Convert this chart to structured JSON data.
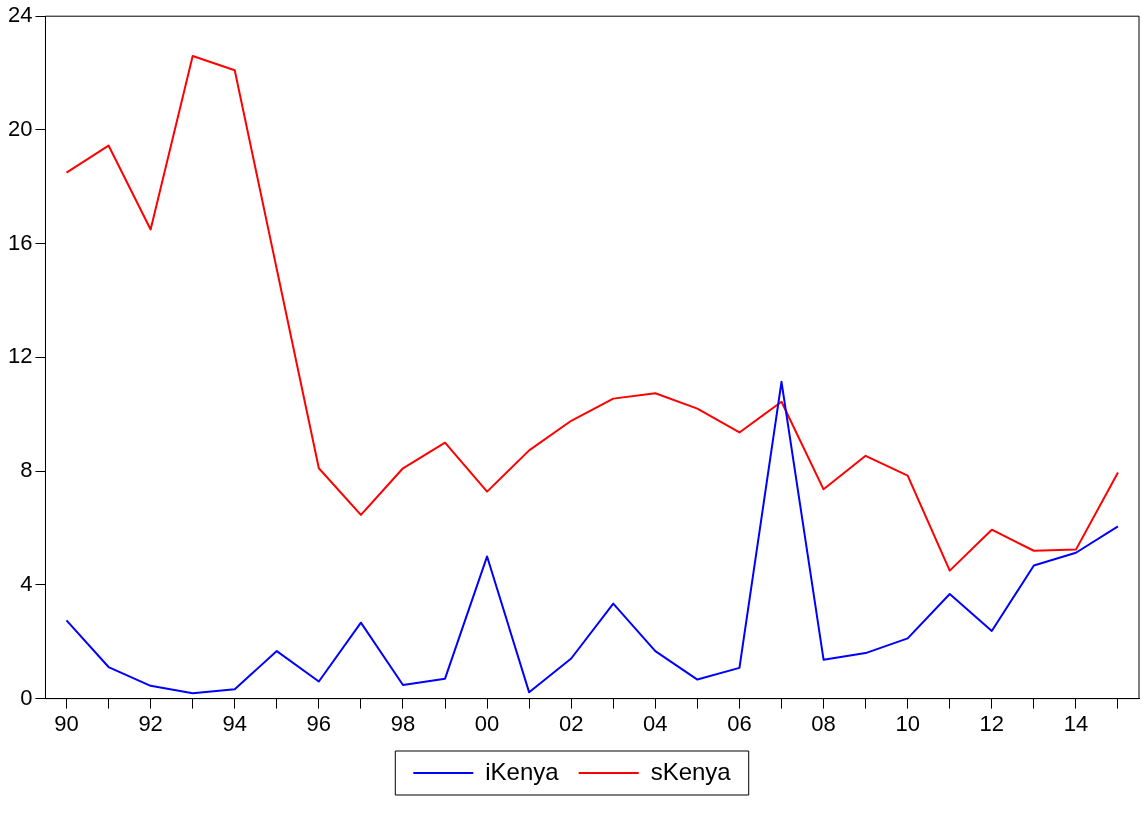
{
  "chart_data": {
    "type": "line",
    "categories": [
      "90",
      null,
      "92",
      null,
      "94",
      null,
      "96",
      null,
      "98",
      null,
      "00",
      null,
      "02",
      null,
      "04",
      null,
      "06",
      null,
      "08",
      null,
      "10",
      null,
      "12",
      null,
      "14",
      null
    ],
    "series": [
      {
        "name": "iKenya",
        "color": "#0000ff",
        "values": [
          2.75,
          1.11,
          0.45,
          0.19,
          0.33,
          1.67,
          0.6,
          2.67,
          0.48,
          0.7,
          5.0,
          0.22,
          1.41,
          3.34,
          1.67,
          0.67,
          1.08,
          11.14,
          1.37,
          1.6,
          2.12,
          3.68,
          2.38,
          4.68,
          5.13,
          6.06
        ]
      },
      {
        "name": "sKenya",
        "color": "#ff0000",
        "values": [
          18.5,
          19.45,
          16.5,
          22.6,
          22.1,
          15.1,
          8.1,
          6.46,
          8.1,
          9.0,
          7.28,
          8.73,
          9.77,
          10.55,
          10.74,
          10.2,
          9.36,
          10.44,
          7.36,
          8.54,
          7.84,
          4.5,
          5.94,
          5.2,
          5.24,
          7.95
        ]
      }
    ],
    "ylim": [
      0,
      24
    ],
    "yticks": [
      0,
      4,
      8,
      12,
      16,
      20,
      24
    ],
    "grid": false,
    "legend": "bottom",
    "marker": "none",
    "line_style": "solid"
  }
}
